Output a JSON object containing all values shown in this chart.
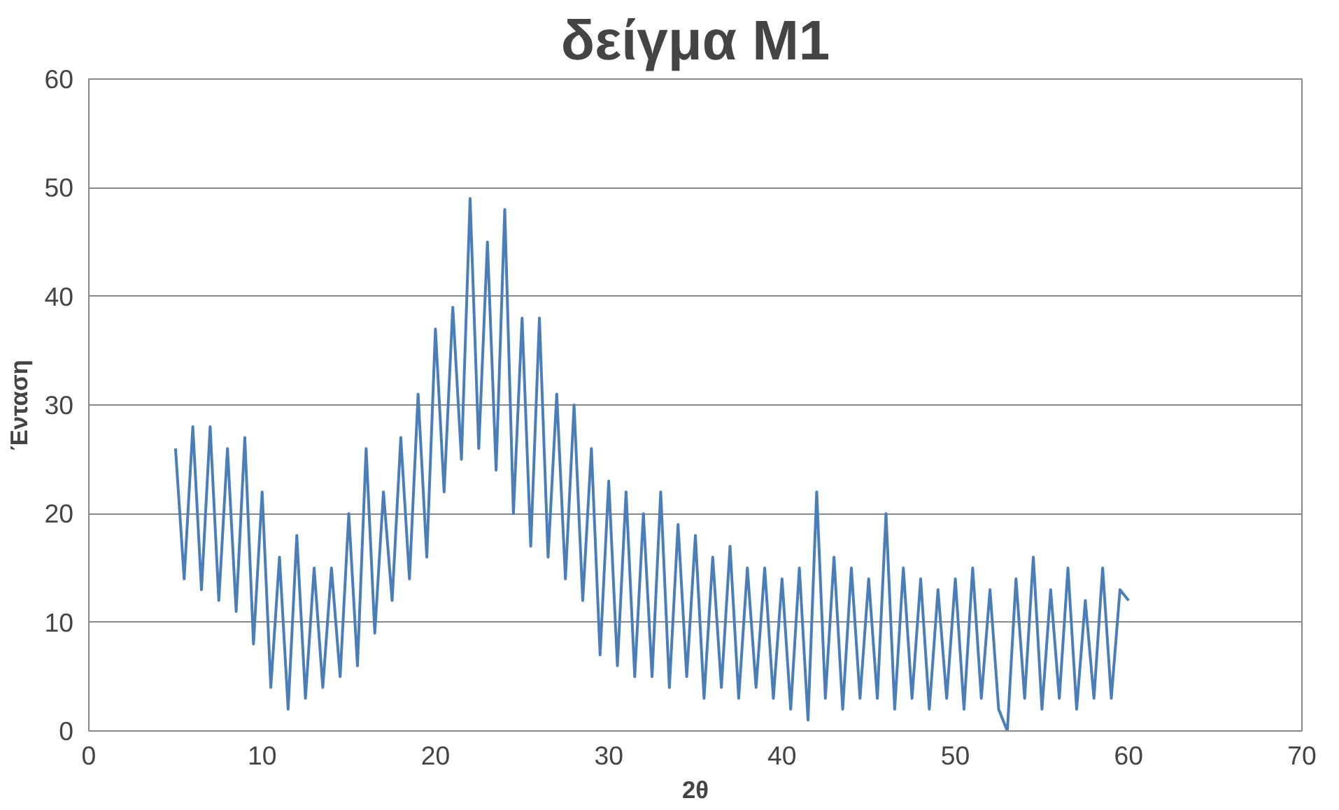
{
  "chart_data": {
    "type": "line",
    "title": "δείγμα M1",
    "xlabel": "2θ",
    "ylabel": "Ένταση",
    "xlim": [
      0,
      70
    ],
    "xticks": [
      0,
      10,
      20,
      30,
      40,
      50,
      60,
      70
    ],
    "ylim": [
      0,
      60
    ],
    "yticks": [
      0,
      10,
      20,
      30,
      40,
      50,
      60
    ],
    "grid": "y",
    "marker": "none",
    "line_style": "solid",
    "series": [
      {
        "color": "#4a7ebb",
        "x": [
          5.0,
          5.5,
          6.0,
          6.5,
          7.0,
          7.5,
          8.0,
          8.5,
          9.0,
          9.5,
          10.0,
          10.5,
          11.0,
          11.5,
          12.0,
          12.5,
          13.0,
          13.5,
          14.0,
          14.5,
          15.0,
          15.5,
          16.0,
          16.5,
          17.0,
          17.5,
          18.0,
          18.5,
          19.0,
          19.5,
          20.0,
          20.5,
          21.0,
          21.5,
          22.0,
          22.5,
          23.0,
          23.5,
          24.0,
          24.5,
          25.0,
          25.5,
          26.0,
          26.5,
          27.0,
          27.5,
          28.0,
          28.5,
          29.0,
          29.5,
          30.0,
          30.5,
          31.0,
          31.5,
          32.0,
          32.5,
          33.0,
          33.5,
          34.0,
          34.5,
          35.0,
          35.5,
          36.0,
          36.5,
          37.0,
          37.5,
          38.0,
          38.5,
          39.0,
          39.5,
          40.0,
          40.5,
          41.0,
          41.5,
          42.0,
          42.5,
          43.0,
          43.5,
          44.0,
          44.5,
          45.0,
          45.5,
          46.0,
          46.5,
          47.0,
          47.5,
          48.0,
          48.5,
          49.0,
          49.5,
          50.0,
          50.5,
          51.0,
          51.5,
          52.0,
          52.5,
          53.0,
          53.5,
          54.0,
          54.5,
          55.0,
          55.5,
          56.0,
          56.5,
          57.0,
          57.5,
          58.0,
          58.5,
          59.0,
          59.5,
          60.0
        ],
        "values": [
          26,
          14,
          28,
          13,
          28,
          12,
          26,
          11,
          27,
          8,
          22,
          4,
          16,
          2,
          18,
          3,
          15,
          4,
          15,
          5,
          20,
          6,
          26,
          9,
          22,
          12,
          27,
          14,
          31,
          16,
          37,
          22,
          39,
          25,
          49,
          26,
          45,
          24,
          48,
          20,
          38,
          17,
          38,
          16,
          31,
          14,
          30,
          12,
          26,
          7,
          23,
          6,
          22,
          5,
          20,
          5,
          22,
          4,
          19,
          5,
          18,
          3,
          16,
          4,
          17,
          3,
          15,
          4,
          15,
          3,
          14,
          2,
          15,
          1,
          22,
          3,
          16,
          2,
          15,
          3,
          14,
          3,
          20,
          2,
          15,
          3,
          14,
          2,
          13,
          3,
          14,
          2,
          15,
          3,
          13,
          2,
          0,
          14,
          3,
          16,
          2,
          13,
          3,
          15,
          2,
          12,
          3,
          15,
          3,
          13,
          12
        ]
      }
    ]
  }
}
